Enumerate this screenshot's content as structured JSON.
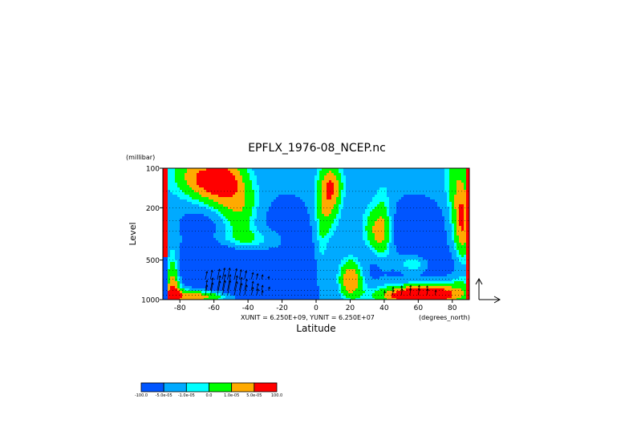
{
  "chart_data": {
    "type": "heatmap",
    "title": "EPFLX_1976-08_NCEP.nc",
    "xlabel": "Latitude",
    "ylabel": "Level",
    "y_unit": "(millibar)",
    "x_unit": "(degrees_north)",
    "unit_note": "XUNIT = 6.250E+09, YUNIT = 6.250E+07",
    "y_scale": "log",
    "xlim": [
      -90,
      90
    ],
    "ylim": [
      1000,
      100
    ],
    "x_ticks": [
      {
        "value": -80,
        "label": "-80"
      },
      {
        "value": -60,
        "label": "-60"
      },
      {
        "value": -40,
        "label": "-40"
      },
      {
        "value": -20,
        "label": "-20"
      },
      {
        "value": 0,
        "label": "0"
      },
      {
        "value": 20,
        "label": "20"
      },
      {
        "value": 40,
        "label": "40"
      },
      {
        "value": 60,
        "label": "60"
      },
      {
        "value": 80,
        "label": "80"
      }
    ],
    "y_ticks": [
      {
        "value": 100,
        "label": "100"
      },
      {
        "value": 200,
        "label": "200"
      },
      {
        "value": 500,
        "label": "500"
      },
      {
        "value": 1000,
        "label": "1000"
      }
    ],
    "levels": [
      1000,
      925,
      850,
      700,
      600,
      500,
      400,
      300,
      250,
      200,
      150,
      100
    ],
    "grid": "dotted lines at each pressure level",
    "colorbar": {
      "labels": [
        "-100.0",
        "-5.0e-05",
        "-1.0e-05",
        "0.0",
        "1.0e-05",
        "5.0e-05",
        "100.0"
      ],
      "colors": [
        "#0055ff",
        "#00aaff",
        "#00ffff",
        "#00ff00",
        "#ffaa00",
        "#ff0000"
      ]
    },
    "class_colors": {
      "-3": "#0055ff",
      "-2": "#00aaff",
      "-1": "#00ffff",
      "1": "#00ff00",
      "2": "#ffaa00",
      "3": "#ff0000"
    },
    "features": [
      {
        "lat": -45,
        "p": 640,
        "sx": 32,
        "sl": 0.32,
        "c": -2.6
      },
      {
        "lat": -55,
        "p": 780,
        "sx": 12,
        "sl": 0.14,
        "c": -1.2
      },
      {
        "lat": -68,
        "p": 350,
        "sx": 8,
        "sl": 0.25,
        "c": -0.9
      },
      {
        "lat": -22,
        "p": 480,
        "sx": 10,
        "sl": 0.2,
        "c": -1.0
      },
      {
        "lat": -45,
        "p": 210,
        "sx": 9,
        "sl": 0.18,
        "c": 2.6
      },
      {
        "lat": -32,
        "p": 380,
        "sx": 10,
        "sl": 0.1,
        "c": 1.6
      },
      {
        "lat": -22,
        "p": 420,
        "sx": 5,
        "sl": 0.1,
        "c": 0.9
      },
      {
        "lat": -62,
        "p": 140,
        "sx": 10,
        "sl": 0.12,
        "c": 2.6
      },
      {
        "lat": -70,
        "p": 110,
        "sx": 10,
        "sl": 0.1,
        "c": 1.6
      },
      {
        "lat": -52,
        "p": 115,
        "sx": 7,
        "sl": 0.1,
        "c": 1.7
      },
      {
        "lat": -50,
        "p": 350,
        "sx": 20,
        "sl": 0.06,
        "c": 1.3
      },
      {
        "lat": 7,
        "p": 170,
        "sx": 5,
        "sl": 0.2,
        "c": 2.5
      },
      {
        "lat": 10,
        "p": 135,
        "sx": 4,
        "sl": 0.1,
        "c": 1.4
      },
      {
        "lat": 3,
        "p": 420,
        "sx": 3,
        "sl": 0.26,
        "c": 1.2
      },
      {
        "lat": 36,
        "p": 310,
        "sx": 6,
        "sl": 0.14,
        "c": 2.6
      },
      {
        "lat": 40,
        "p": 280,
        "sx": 4,
        "sl": 0.22,
        "c": 1.1
      },
      {
        "lat": 20,
        "p": 720,
        "sx": 5,
        "sl": 0.1,
        "c": 2.6
      },
      {
        "lat": 22,
        "p": 600,
        "sx": 6,
        "sl": 0.12,
        "c": 1.2
      },
      {
        "lat": 58,
        "p": 540,
        "sx": 7,
        "sl": 0.05,
        "c": 2.6
      },
      {
        "lat": 52,
        "p": 470,
        "sx": 12,
        "sl": 0.08,
        "c": 1.2
      },
      {
        "lat": 86,
        "p": 260,
        "sx": 3,
        "sl": 0.22,
        "c": 2.6
      },
      {
        "lat": 82,
        "p": 160,
        "sx": 4,
        "sl": 0.3,
        "c": 1.3
      },
      {
        "lat": 58,
        "p": 320,
        "sx": 14,
        "sl": 0.2,
        "c": -2.5
      },
      {
        "lat": 65,
        "p": 560,
        "sx": 18,
        "sl": 0.1,
        "c": -1.5
      },
      {
        "lat": 32,
        "p": 520,
        "sx": 8,
        "sl": 0.12,
        "c": -1.1
      },
      {
        "lat": 70,
        "p": 820,
        "sx": 15,
        "sl": 0.06,
        "c": 1.4
      },
      {
        "lat": 60,
        "p": 960,
        "sx": 14,
        "sl": 0.04,
        "c": 3.4
      },
      {
        "lat": 60,
        "p": 880,
        "sx": 18,
        "sl": 0.05,
        "c": 1.8
      },
      {
        "lat": -65,
        "p": 960,
        "sx": 16,
        "sl": 0.04,
        "c": 3.4
      },
      {
        "lat": -70,
        "p": 900,
        "sx": 18,
        "sl": 0.06,
        "c": 1.6
      },
      {
        "lat": -84,
        "p": 800,
        "sx": 3,
        "sl": 0.2,
        "c": 3.3
      }
    ],
    "vectors": [
      {
        "lat": -65,
        "p": 700,
        "u": 0.3,
        "v": 1.4
      },
      {
        "lat": -62,
        "p": 700,
        "u": 0.3,
        "v": 1.6
      },
      {
        "lat": -58,
        "p": 700,
        "u": 0.4,
        "v": 1.8
      },
      {
        "lat": -55,
        "p": 700,
        "u": 0.4,
        "v": 2.0
      },
      {
        "lat": -52,
        "p": 700,
        "u": 0.4,
        "v": 2.0
      },
      {
        "lat": -48,
        "p": 700,
        "u": 0.4,
        "v": 1.9
      },
      {
        "lat": -45,
        "p": 700,
        "u": 0.3,
        "v": 1.7
      },
      {
        "lat": -42,
        "p": 700,
        "u": 0.3,
        "v": 1.5
      },
      {
        "lat": -38,
        "p": 700,
        "u": 0.3,
        "v": 1.2
      },
      {
        "lat": -35,
        "p": 700,
        "u": 0.2,
        "v": 1.0
      },
      {
        "lat": -32,
        "p": 700,
        "u": 0.2,
        "v": 0.8
      },
      {
        "lat": -28,
        "p": 700,
        "u": 0.1,
        "v": 0.5
      },
      {
        "lat": -65,
        "p": 850,
        "u": 0.3,
        "v": 1.8
      },
      {
        "lat": -62,
        "p": 850,
        "u": 0.4,
        "v": 2.2
      },
      {
        "lat": -58,
        "p": 850,
        "u": 0.5,
        "v": 2.6
      },
      {
        "lat": -55,
        "p": 850,
        "u": 0.5,
        "v": 2.8
      },
      {
        "lat": -52,
        "p": 850,
        "u": 0.5,
        "v": 2.8
      },
      {
        "lat": -48,
        "p": 850,
        "u": 0.5,
        "v": 2.6
      },
      {
        "lat": -45,
        "p": 850,
        "u": 0.4,
        "v": 2.3
      },
      {
        "lat": -42,
        "p": 850,
        "u": 0.4,
        "v": 2.0
      },
      {
        "lat": -38,
        "p": 850,
        "u": 0.3,
        "v": 1.6
      },
      {
        "lat": -35,
        "p": 850,
        "u": 0.3,
        "v": 1.2
      },
      {
        "lat": -32,
        "p": 850,
        "u": 0.2,
        "v": 0.9
      },
      {
        "lat": -28,
        "p": 850,
        "u": 0.2,
        "v": 0.6
      },
      {
        "lat": -65,
        "p": 925,
        "u": 0.3,
        "v": 1.8
      },
      {
        "lat": -62,
        "p": 925,
        "u": 0.4,
        "v": 2.2
      },
      {
        "lat": -58,
        "p": 925,
        "u": 0.5,
        "v": 2.5
      },
      {
        "lat": -55,
        "p": 925,
        "u": 0.5,
        "v": 2.6
      },
      {
        "lat": -52,
        "p": 925,
        "u": 0.5,
        "v": 2.6
      },
      {
        "lat": -48,
        "p": 925,
        "u": 0.5,
        "v": 2.4
      },
      {
        "lat": -45,
        "p": 925,
        "u": 0.4,
        "v": 2.1
      },
      {
        "lat": -42,
        "p": 925,
        "u": 0.4,
        "v": 1.8
      },
      {
        "lat": -38,
        "p": 925,
        "u": 0.3,
        "v": 1.4
      },
      {
        "lat": -35,
        "p": 925,
        "u": 0.3,
        "v": 1.1
      },
      {
        "lat": -32,
        "p": 925,
        "u": 0.2,
        "v": 0.8
      },
      {
        "lat": 40,
        "p": 925,
        "u": 0.1,
        "v": 0.7
      },
      {
        "lat": 45,
        "p": 925,
        "u": 0.1,
        "v": 0.9
      },
      {
        "lat": 50,
        "p": 925,
        "u": 0.2,
        "v": 1.1
      },
      {
        "lat": 55,
        "p": 925,
        "u": 0.2,
        "v": 1.2
      },
      {
        "lat": 60,
        "p": 925,
        "u": 0.2,
        "v": 1.2
      },
      {
        "lat": 65,
        "p": 925,
        "u": 0.2,
        "v": 1.1
      },
      {
        "lat": 70,
        "p": 925,
        "u": 0.1,
        "v": 0.9
      },
      {
        "lat": 45,
        "p": 850,
        "u": 0.1,
        "v": 0.6
      },
      {
        "lat": 50,
        "p": 850,
        "u": 0.1,
        "v": 0.8
      },
      {
        "lat": 55,
        "p": 850,
        "u": 0.2,
        "v": 0.9
      },
      {
        "lat": 60,
        "p": 850,
        "u": 0.2,
        "v": 0.9
      },
      {
        "lat": 65,
        "p": 850,
        "u": 0.1,
        "v": 0.8
      }
    ]
  }
}
